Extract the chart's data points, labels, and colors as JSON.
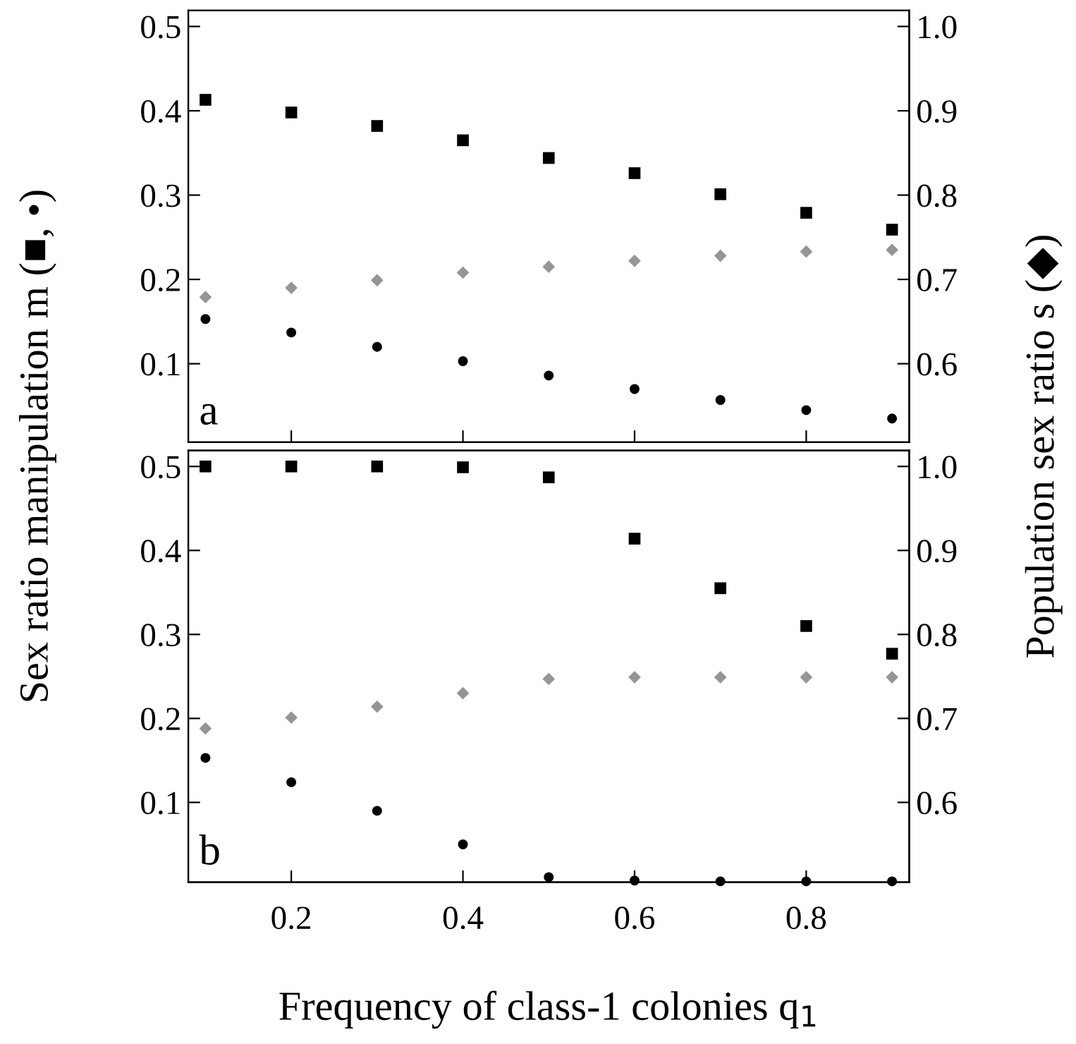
{
  "chart_data": [
    {
      "type": "scatter",
      "ylabel": "Sex ratio manipulation m (■, •)",
      "y2label": "Population sex ratio s (◆)",
      "annotations": [
        "a"
      ],
      "x": [
        0.1,
        0.2,
        0.3,
        0.4,
        0.5,
        0.6,
        0.7,
        0.8,
        0.9
      ],
      "xlim": [
        0.08,
        0.92
      ],
      "xticks": [
        0.2,
        0.4,
        0.6,
        0.8
      ],
      "ylim": [
        0.007,
        0.519
      ],
      "yticks": [
        0.1,
        0.2,
        0.3,
        0.4,
        0.5
      ],
      "y2lim": [
        0.507,
        1.019
      ],
      "y2ticks": [
        0.6,
        0.7,
        0.8,
        0.9,
        {
          "value": 1,
          "label": "1.0"
        }
      ],
      "tick_labels": "y",
      "grid": false,
      "series": [
        {
          "color": "#000000",
          "marker": "square",
          "values": [
            0.413,
            0.398,
            0.382,
            0.365,
            0.344,
            0.326,
            0.301,
            0.279,
            0.259
          ]
        },
        {
          "color": "#000000",
          "marker": "circle",
          "values": [
            0.153,
            0.137,
            0.12,
            0.103,
            0.086,
            0.07,
            0.057,
            0.045,
            0.035
          ]
        },
        {
          "color": "#939598",
          "marker": "diamond",
          "axis": "y2",
          "values": [
            0.679,
            0.69,
            0.699,
            0.708,
            0.715,
            0.722,
            0.728,
            0.733,
            0.735
          ]
        }
      ]
    },
    {
      "type": "scatter",
      "xlabel": "Frequency of class-1 colonies q$_{1}$",
      "annotations": [
        "b"
      ],
      "x": [
        0.1,
        0.2,
        0.3,
        0.4,
        0.5,
        0.6,
        0.7,
        0.8,
        0.9
      ],
      "xlim": [
        0.08,
        0.92
      ],
      "xticks": [
        0.2,
        0.4,
        0.6,
        0.8
      ],
      "ylim": [
        0.005,
        0.519
      ],
      "yticks": [
        0.1,
        0.2,
        0.3,
        0.4,
        0.5
      ],
      "y2lim": [
        0.505,
        1.019
      ],
      "y2ticks": [
        0.6,
        0.7,
        0.8,
        0.9,
        {
          "value": 1,
          "label": "1.0"
        }
      ],
      "grid": false,
      "series": [
        {
          "color": "#000000",
          "marker": "square",
          "values": [
            0.5,
            0.5,
            0.5,
            0.499,
            0.487,
            0.414,
            0.355,
            0.31,
            0.277
          ]
        },
        {
          "color": "#000000",
          "marker": "circle",
          "values": [
            0.153,
            0.124,
            0.09,
            0.05,
            0.011,
            0.007,
            0.006,
            0.006,
            0.006
          ]
        },
        {
          "color": "#939598",
          "marker": "diamond",
          "axis": "y2",
          "values": [
            0.688,
            0.701,
            0.714,
            0.73,
            0.747,
            0.749,
            0.749,
            0.749,
            0.749
          ]
        }
      ]
    }
  ]
}
